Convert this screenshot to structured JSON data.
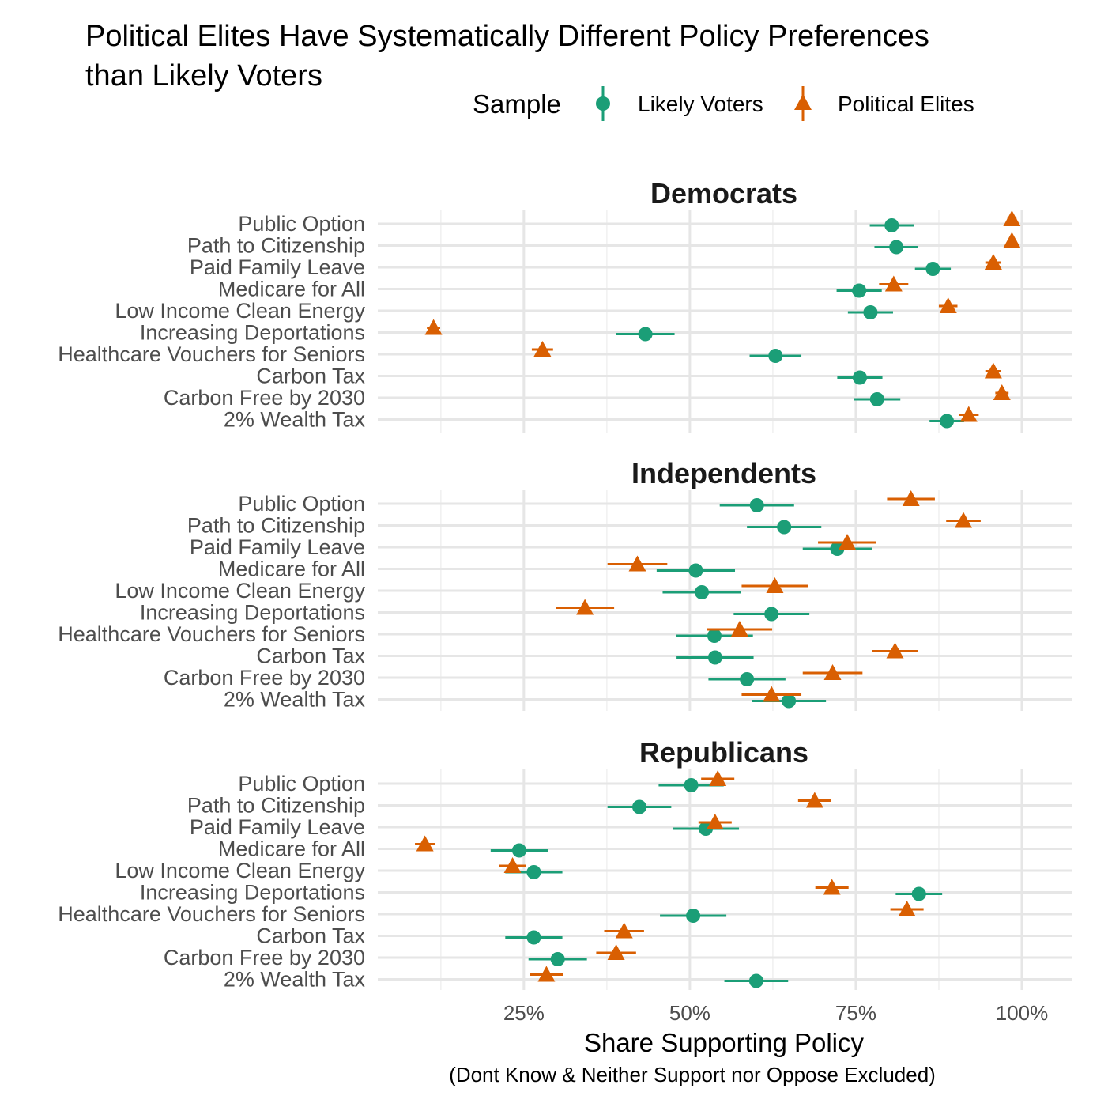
{
  "chart_data": {
    "type": "scatter",
    "title": "Political Elites Have Systematically Different Policy Preferences than Likely Voters",
    "title_lines": [
      "Political Elites Have Systematically Different Policy Preferences",
      "than Likely Voters"
    ],
    "xlabel": "Share Supporting Policy",
    "xlabel_sub": "(Dont Know & Neither Support nor Oppose Excluded)",
    "xlim": [
      0.03,
      1.075
    ],
    "x_ticks": [
      0.25,
      0.5,
      0.75,
      1.0
    ],
    "x_tick_labels": [
      "25%",
      "50%",
      "75%",
      "100%"
    ],
    "x_minor_ticks": [
      0.125,
      0.375,
      0.625,
      0.875
    ],
    "grid": true,
    "legend": {
      "title": "Sample",
      "position": "top",
      "entries": [
        {
          "name": "Likely Voters",
          "color": "#1b9e77",
          "shape": "circle"
        },
        {
          "name": "Political Elites",
          "color": "#d95f02",
          "shape": "triangle"
        }
      ]
    },
    "categories": [
      "Public Option",
      "Path to Citizenship",
      "Paid Family Leave",
      "Medicare for All",
      "Low Income Clean Energy",
      "Increasing Deportations",
      "Healthcare Vouchers for Seniors",
      "Carbon Tax",
      "Carbon Free by 2030",
      "2% Wealth Tax"
    ],
    "facets": [
      {
        "name": "Democrats",
        "series": [
          {
            "name": "Likely Voters",
            "values": [
              0.804,
              0.811,
              0.866,
              0.755,
              0.772,
              0.433,
              0.629,
              0.756,
              0.782,
              0.887
            ],
            "lower": [
              0.771,
              0.778,
              0.839,
              0.721,
              0.738,
              0.389,
              0.59,
              0.722,
              0.747,
              0.861
            ],
            "upper": [
              0.837,
              0.844,
              0.893,
              0.789,
              0.806,
              0.477,
              0.668,
              0.79,
              0.817,
              0.913
            ]
          },
          {
            "name": "Political Elites",
            "values": [
              0.985,
              0.985,
              0.957,
              0.807,
              0.889,
              0.114,
              0.278,
              0.957,
              0.97,
              0.92
            ],
            "lower": [
              0.978,
              0.978,
              0.945,
              0.785,
              0.875,
              0.104,
              0.262,
              0.945,
              0.96,
              0.905
            ],
            "upper": [
              0.992,
              0.992,
              0.969,
              0.829,
              0.903,
              0.124,
              0.294,
              0.969,
              0.98,
              0.935
            ]
          }
        ]
      },
      {
        "name": "Independents",
        "series": [
          {
            "name": "Likely Voters",
            "values": [
              0.601,
              0.642,
              0.722,
              0.509,
              0.518,
              0.623,
              0.537,
              0.538,
              0.586,
              0.649
            ],
            "lower": [
              0.545,
              0.586,
              0.67,
              0.45,
              0.459,
              0.566,
              0.479,
              0.48,
              0.528,
              0.593
            ],
            "upper": [
              0.657,
              0.698,
              0.774,
              0.568,
              0.577,
              0.68,
              0.595,
              0.596,
              0.644,
              0.705
            ]
          },
          {
            "name": "Political Elites",
            "values": [
              0.833,
              0.912,
              0.737,
              0.421,
              0.628,
              0.342,
              0.575,
              0.809,
              0.715,
              0.623
            ],
            "lower": [
              0.797,
              0.886,
              0.693,
              0.376,
              0.578,
              0.298,
              0.526,
              0.774,
              0.67,
              0.578
            ],
            "upper": [
              0.869,
              0.938,
              0.781,
              0.466,
              0.678,
              0.386,
              0.624,
              0.844,
              0.76,
              0.668
            ]
          }
        ]
      },
      {
        "name": "Republicans",
        "series": [
          {
            "name": "Likely Voters",
            "values": [
              0.502,
              0.424,
              0.524,
              0.243,
              0.265,
              0.845,
              0.505,
              0.265,
              0.301,
              0.6
            ],
            "lower": [
              0.453,
              0.376,
              0.474,
              0.2,
              0.222,
              0.81,
              0.455,
              0.222,
              0.257,
              0.552
            ],
            "upper": [
              0.551,
              0.472,
              0.574,
              0.286,
              0.308,
              0.88,
              0.555,
              0.308,
              0.345,
              0.648
            ]
          },
          {
            "name": "Political Elites",
            "values": [
              0.542,
              0.688,
              0.538,
              0.101,
              0.233,
              0.714,
              0.827,
              0.401,
              0.389,
              0.284
            ],
            "lower": [
              0.517,
              0.663,
              0.513,
              0.086,
              0.213,
              0.689,
              0.802,
              0.371,
              0.359,
              0.259
            ],
            "upper": [
              0.567,
              0.713,
              0.563,
              0.116,
              0.253,
              0.739,
              0.852,
              0.431,
              0.419,
              0.309
            ]
          }
        ]
      }
    ]
  }
}
